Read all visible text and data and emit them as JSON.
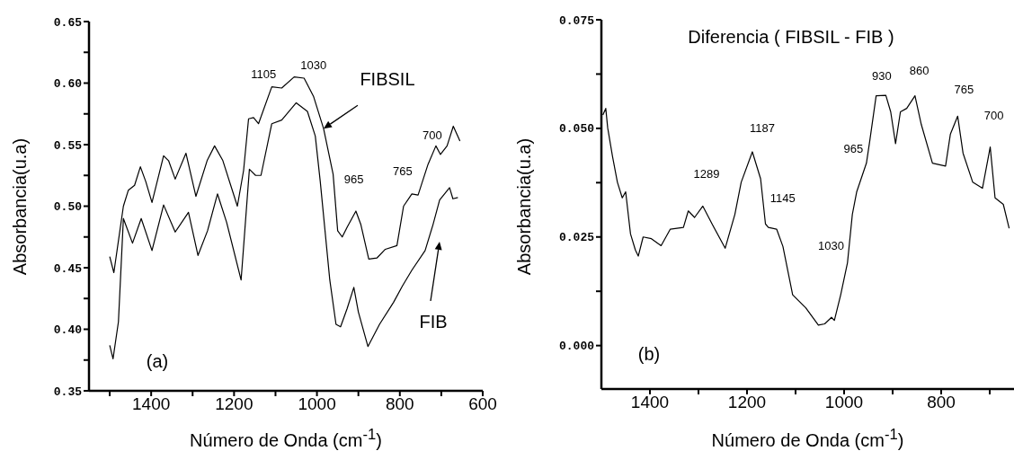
{
  "chart_data": [
    {
      "type": "line",
      "xlabel": "Número de Onda (cm$^{-1}$)",
      "ylabel": "Absorbancia(u.a)",
      "marker": "none",
      "xlim": [
        1550,
        600
      ],
      "xticks": [
        {
          "value": 1500,
          "label": null
        },
        1400,
        {
          "value": 1300,
          "label": null
        },
        1200,
        {
          "value": 1100,
          "label": null
        },
        1000,
        {
          "value": 900,
          "label": null
        },
        800,
        {
          "value": 700,
          "label": null
        },
        600
      ],
      "ylim": [
        0.35,
        0.65
      ],
      "yticks": [
        {
          "value": 0.35,
          "label": "0.35"
        },
        {
          "value": 0.375,
          "label": null
        },
        {
          "value": 0.4,
          "label": "0.40"
        },
        {
          "value": 0.425,
          "label": null
        },
        {
          "value": 0.45,
          "label": "0.45"
        },
        {
          "value": 0.475,
          "label": null
        },
        {
          "value": 0.5,
          "label": "0.50"
        },
        {
          "value": 0.525,
          "label": null
        },
        {
          "value": 0.55,
          "label": "0.55"
        },
        {
          "value": 0.575,
          "label": null
        },
        {
          "value": 0.6,
          "label": "0.60"
        },
        {
          "value": 0.625,
          "label": null
        },
        {
          "value": 0.65,
          "label": "0.65"
        }
      ],
      "series": [
        {
          "color": "#000000",
          "x": [
            1500,
            1490,
            1467,
            1455,
            1440,
            1426,
            1413,
            1398,
            1370,
            1358,
            1342,
            1316,
            1292,
            1265,
            1247,
            1227,
            1192,
            1177,
            1165,
            1153,
            1141,
            1109,
            1085,
            1055,
            1031,
            1008,
            984,
            961,
            950,
            939,
            927,
            906,
            894,
            875,
            855,
            835,
            807,
            791,
            771,
            756,
            732,
            713,
            702,
            686,
            671,
            655
          ],
          "values": [
            0.459,
            0.446,
            0.5,
            0.513,
            0.517,
            0.532,
            0.52,
            0.503,
            0.541,
            0.537,
            0.522,
            0.543,
            0.508,
            0.537,
            0.549,
            0.537,
            0.5,
            0.529,
            0.571,
            0.572,
            0.567,
            0.597,
            0.596,
            0.605,
            0.604,
            0.589,
            0.563,
            0.526,
            0.48,
            0.475,
            0.483,
            0.496,
            0.485,
            0.457,
            0.458,
            0.465,
            0.468,
            0.5,
            0.51,
            0.509,
            0.534,
            0.549,
            0.542,
            0.549,
            0.565,
            0.553
          ]
        },
        {
          "color": "#000000",
          "x": [
            1500,
            1492,
            1479,
            1467,
            1445,
            1424,
            1398,
            1370,
            1342,
            1310,
            1287,
            1264,
            1240,
            1218,
            1183,
            1163,
            1148,
            1135,
            1109,
            1085,
            1050,
            1023,
            1004,
            992,
            969,
            954,
            943,
            927,
            911,
            900,
            877,
            849,
            815,
            794,
            771,
            739,
            720,
            704,
            680,
            672,
            660
          ],
          "values": [
            0.387,
            0.376,
            0.406,
            0.49,
            0.47,
            0.49,
            0.464,
            0.501,
            0.479,
            0.495,
            0.46,
            0.48,
            0.51,
            0.487,
            0.44,
            0.53,
            0.525,
            0.525,
            0.567,
            0.57,
            0.584,
            0.577,
            0.557,
            0.52,
            0.44,
            0.404,
            0.402,
            0.417,
            0.434,
            0.414,
            0.386,
            0.404,
            0.422,
            0.435,
            0.448,
            0.464,
            0.485,
            0.505,
            0.515,
            0.506,
            0.507
          ]
        }
      ],
      "annotations": [
        "(a)",
        {
          "text": "1105",
          "x": 1105,
          "y": 0.597
        },
        {
          "text": "1030",
          "x": 1030,
          "y": 0.604
        },
        {
          "text": "965",
          "x": 965,
          "y": 0.526
        },
        {
          "text": "765",
          "x": 765,
          "y": 0.51
        },
        {
          "text": "700",
          "x": 700,
          "y": 0.545
        },
        {
          "text": "FIBSIL",
          "x": 984,
          "y": 0.563
        },
        "FIB"
      ]
    },
    {
      "type": "line",
      "title": "Diferencia ( FIBSIL - FIB )",
      "xlabel": "Número de Onda (cm$^{-1}$)",
      "ylabel": "Absorbancia(u.a)",
      "marker": "none",
      "xlim": [
        1500,
        650
      ],
      "xticks": [
        1400,
        {
          "value": 1300,
          "label": null
        },
        1200,
        {
          "value": 1100,
          "label": null
        },
        1000,
        {
          "value": 900,
          "label": null
        },
        800,
        {
          "value": 700,
          "label": null
        }
      ],
      "ylim": [
        -0.01,
        0.075
      ],
      "yticks": [
        {
          "value": 0,
          "label": "0.000"
        },
        {
          "value": 0.0125,
          "label": null
        },
        {
          "value": 0.025,
          "label": "0.025"
        },
        {
          "value": 0.0375,
          "label": null
        },
        {
          "value": 0.05,
          "label": "0.050"
        },
        {
          "value": 0.0625,
          "label": null
        },
        {
          "value": 0.075,
          "label": "0.075"
        }
      ],
      "series": [
        {
          "color": "#000000",
          "x": [
            1497,
            1491,
            1487,
            1477,
            1467,
            1457,
            1450,
            1440,
            1430,
            1424,
            1414,
            1397,
            1377,
            1358,
            1331,
            1321,
            1308,
            1291,
            1272,
            1245,
            1225,
            1212,
            1189,
            1172,
            1162,
            1156,
            1139,
            1126,
            1106,
            1079,
            1053,
            1040,
            1026,
            1020,
            1007,
            993,
            983,
            974,
            954,
            947,
            934,
            914,
            904,
            894,
            884,
            871,
            854,
            841,
            818,
            791,
            781,
            766,
            755,
            735,
            715,
            699,
            689,
            672,
            660
          ],
          "values": [
            0.0531,
            0.0546,
            0.0501,
            0.0435,
            0.0376,
            0.034,
            0.0354,
            0.0257,
            0.022,
            0.0206,
            0.025,
            0.0246,
            0.023,
            0.0268,
            0.0272,
            0.031,
            0.0295,
            0.0321,
            0.028,
            0.0224,
            0.0302,
            0.0376,
            0.0446,
            0.0384,
            0.028,
            0.0272,
            0.0268,
            0.0228,
            0.0117,
            0.0087,
            0.0047,
            0.005,
            0.0065,
            0.0058,
            0.0117,
            0.0191,
            0.0302,
            0.0354,
            0.042,
            0.0472,
            0.0575,
            0.0576,
            0.0538,
            0.0465,
            0.0538,
            0.0546,
            0.0575,
            0.0509,
            0.042,
            0.0413,
            0.0487,
            0.0528,
            0.0443,
            0.0376,
            0.0362,
            0.0457,
            0.034,
            0.0325,
            0.027
          ]
        }
      ],
      "annotations": [
        "(b)",
        {
          "text": "1289",
          "x": 1289,
          "y": 0.032
        },
        {
          "text": "1187",
          "x": 1187,
          "y": 0.0446
        },
        {
          "text": "1145",
          "x": 1145,
          "y": 0.027
        },
        {
          "text": "1030",
          "x": 990,
          "y": 0.023
        },
        {
          "text": "965",
          "x": 955,
          "y": 0.045
        },
        {
          "text": "930",
          "x": 930,
          "y": 0.0576
        },
        {
          "text": "860",
          "x": 860,
          "y": 0.0575
        },
        {
          "text": "765",
          "x": 766,
          "y": 0.0528
        },
        {
          "text": "700",
          "x": 699,
          "y": 0.0457
        }
      ]
    }
  ]
}
